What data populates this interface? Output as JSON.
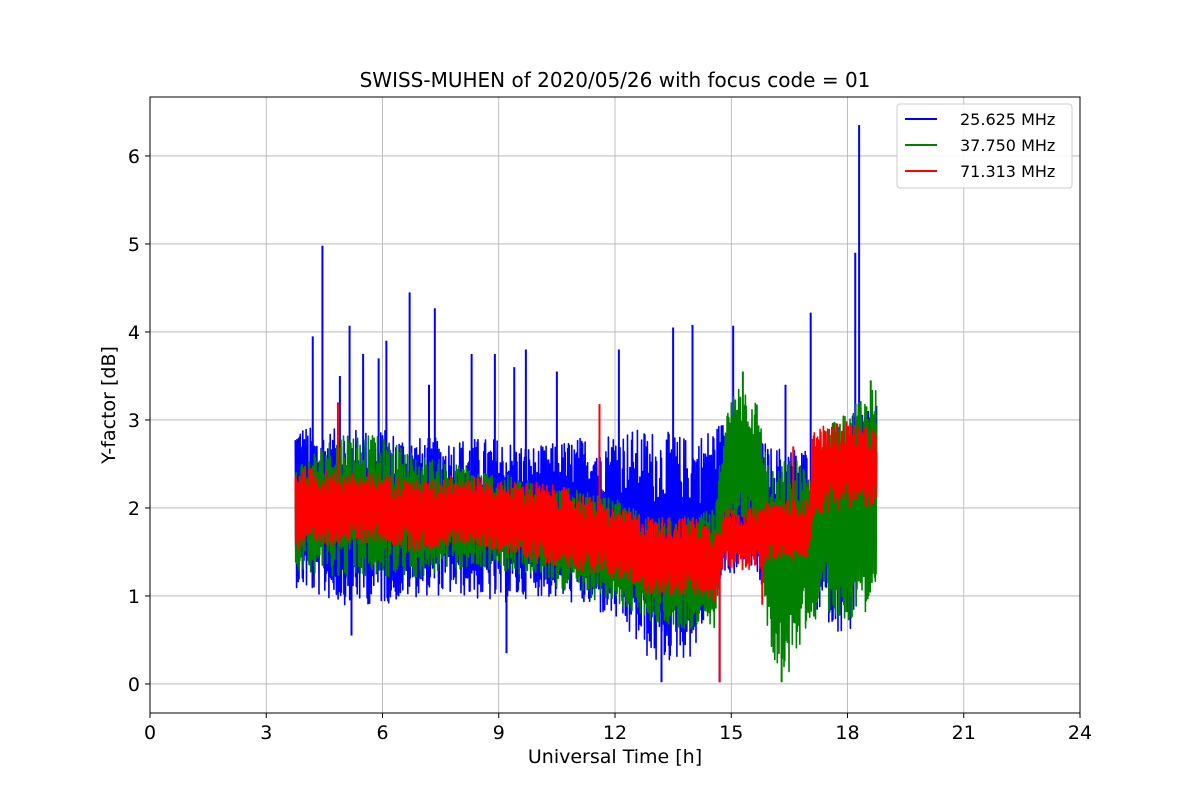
{
  "chart_data": {
    "type": "line",
    "title": "SWISS-MUHEN of 2020/05/26 with focus code = 01",
    "xlabel": "Universal Time [h]",
    "ylabel": "Y-factor [dB]",
    "xlim": [
      0,
      24
    ],
    "ylim": [
      -0.33,
      6.67
    ],
    "xticks": [
      0,
      3,
      6,
      9,
      12,
      15,
      18,
      21,
      24
    ],
    "yticks": [
      0,
      1,
      2,
      3,
      4,
      5,
      6
    ],
    "grid": true,
    "legend_position": "top-right",
    "series": [
      {
        "name": "25.625 MHz",
        "color": "#0000ff",
        "x_range": [
          3.75,
          18.75
        ],
        "envelope": [
          [
            3.75,
            1.1,
            3.0
          ],
          [
            4.25,
            1.0,
            2.9
          ],
          [
            5.0,
            0.9,
            2.9
          ],
          [
            6.0,
            0.9,
            2.9
          ],
          [
            7.0,
            1.0,
            2.8
          ],
          [
            8.0,
            1.0,
            2.8
          ],
          [
            9.0,
            0.9,
            2.8
          ],
          [
            10.0,
            1.0,
            2.7
          ],
          [
            11.0,
            0.9,
            2.8
          ],
          [
            12.0,
            0.7,
            2.9
          ],
          [
            13.0,
            0.2,
            2.9
          ],
          [
            14.0,
            0.3,
            2.8
          ],
          [
            14.8,
            1.2,
            3.0
          ],
          [
            15.5,
            1.3,
            2.9
          ],
          [
            16.0,
            0.9,
            2.7
          ],
          [
            17.0,
            0.9,
            2.7
          ],
          [
            18.0,
            0.5,
            3.0
          ],
          [
            18.75,
            1.5,
            3.3
          ]
        ],
        "spikes": [
          [
            4.2,
            3.95
          ],
          [
            4.45,
            4.98
          ],
          [
            4.9,
            3.5
          ],
          [
            5.15,
            4.07
          ],
          [
            5.5,
            3.75
          ],
          [
            5.9,
            3.7
          ],
          [
            6.1,
            3.9
          ],
          [
            6.7,
            4.45
          ],
          [
            7.2,
            3.4
          ],
          [
            7.35,
            4.27
          ],
          [
            8.3,
            3.75
          ],
          [
            8.9,
            3.75
          ],
          [
            9.4,
            3.6
          ],
          [
            9.7,
            3.8
          ],
          [
            10.5,
            3.55
          ],
          [
            12.1,
            3.8
          ],
          [
            13.5,
            4.05
          ],
          [
            14.0,
            4.08
          ],
          [
            15.05,
            4.07
          ],
          [
            16.4,
            3.4
          ],
          [
            17.05,
            4.22
          ],
          [
            18.2,
            4.9
          ],
          [
            18.3,
            6.35
          ],
          [
            9.2,
            0.35
          ],
          [
            13.2,
            0.02
          ],
          [
            14.7,
            0.02
          ],
          [
            5.2,
            0.55
          ]
        ]
      },
      {
        "name": "37.750 MHz",
        "color": "#008000",
        "x_range": [
          3.75,
          18.75
        ],
        "envelope": [
          [
            3.75,
            1.3,
            2.5
          ],
          [
            5.0,
            1.2,
            2.9
          ],
          [
            6.0,
            1.2,
            2.8
          ],
          [
            7.0,
            1.2,
            2.6
          ],
          [
            8.0,
            1.3,
            2.5
          ],
          [
            9.0,
            1.3,
            2.4
          ],
          [
            10.0,
            1.2,
            2.3
          ],
          [
            11.0,
            1.0,
            2.2
          ],
          [
            12.0,
            0.9,
            2.1
          ],
          [
            13.0,
            0.7,
            1.9
          ],
          [
            14.0,
            0.6,
            1.9
          ],
          [
            14.6,
            0.6,
            2.0
          ],
          [
            14.8,
            1.8,
            3.0
          ],
          [
            15.2,
            1.9,
            3.5
          ],
          [
            15.7,
            1.6,
            3.2
          ],
          [
            16.0,
            0.3,
            2.4
          ],
          [
            16.5,
            0.1,
            2.6
          ],
          [
            17.0,
            0.7,
            2.5
          ],
          [
            17.5,
            0.8,
            3.0
          ],
          [
            18.0,
            0.7,
            3.1
          ],
          [
            18.75,
            0.9,
            3.4
          ]
        ],
        "spikes": [
          [
            15.3,
            3.55
          ],
          [
            16.3,
            0.02
          ],
          [
            18.6,
            3.45
          ]
        ]
      },
      {
        "name": "71.313 MHz",
        "color": "#ff0000",
        "x_range": [
          3.75,
          18.75
        ],
        "envelope": [
          [
            3.75,
            1.5,
            2.5
          ],
          [
            5.0,
            1.6,
            2.4
          ],
          [
            6.0,
            1.6,
            2.4
          ],
          [
            7.0,
            1.5,
            2.3
          ],
          [
            8.0,
            1.6,
            2.4
          ],
          [
            9.0,
            1.5,
            2.3
          ],
          [
            10.0,
            1.4,
            2.3
          ],
          [
            11.0,
            1.3,
            2.2
          ],
          [
            12.0,
            1.2,
            2.0
          ],
          [
            13.0,
            1.0,
            1.9
          ],
          [
            14.0,
            1.0,
            1.9
          ],
          [
            14.6,
            0.9,
            1.8
          ],
          [
            14.8,
            1.3,
            2.0
          ],
          [
            15.8,
            1.3,
            2.0
          ],
          [
            16.0,
            1.4,
            2.1
          ],
          [
            17.0,
            1.4,
            2.1
          ],
          [
            17.1,
            1.9,
            2.9
          ],
          [
            18.0,
            2.0,
            3.0
          ],
          [
            18.75,
            2.0,
            2.9
          ]
        ],
        "spikes": [
          [
            4.85,
            3.2
          ],
          [
            11.6,
            3.18
          ],
          [
            14.7,
            0.02
          ],
          [
            15.8,
            0.9
          ],
          [
            16.6,
            2.7
          ]
        ]
      }
    ]
  }
}
